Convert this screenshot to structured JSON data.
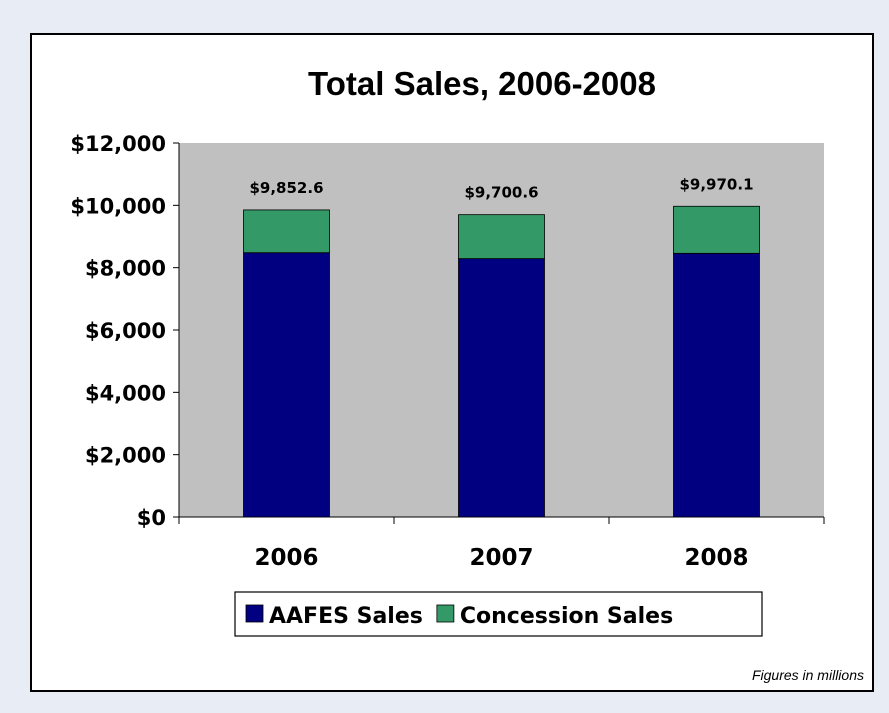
{
  "footnote": "Figures in millions",
  "chart_data": {
    "type": "bar",
    "stacked": true,
    "title": "Total Sales, 2006-2008",
    "xlabel": "",
    "ylabel": "",
    "categories": [
      "2006",
      "2007",
      "2008"
    ],
    "series": [
      {
        "name": "AAFES Sales",
        "values": [
          8480,
          8290,
          8460
        ]
      },
      {
        "name": "Concession Sales",
        "values": [
          1372.6,
          1410.6,
          1510.1
        ]
      }
    ],
    "totals": [
      9852.6,
      9700.6,
      9970.1
    ],
    "total_labels": [
      "$9,852.6",
      "$9,700.6",
      "$9,970.1"
    ],
    "ylim": [
      0,
      12000
    ],
    "yticks": [
      0,
      2000,
      4000,
      6000,
      8000,
      10000,
      12000
    ],
    "ytick_labels": [
      "$0",
      "$2,000",
      "$4,000",
      "$6,000",
      "$8,000",
      "$10,000",
      "$12,000"
    ],
    "legend_position": "bottom",
    "grid": false,
    "colors": {
      "AAFES Sales": "#000080",
      "Concession Sales": "#339966",
      "plot_background": "#c0c0c0"
    }
  }
}
